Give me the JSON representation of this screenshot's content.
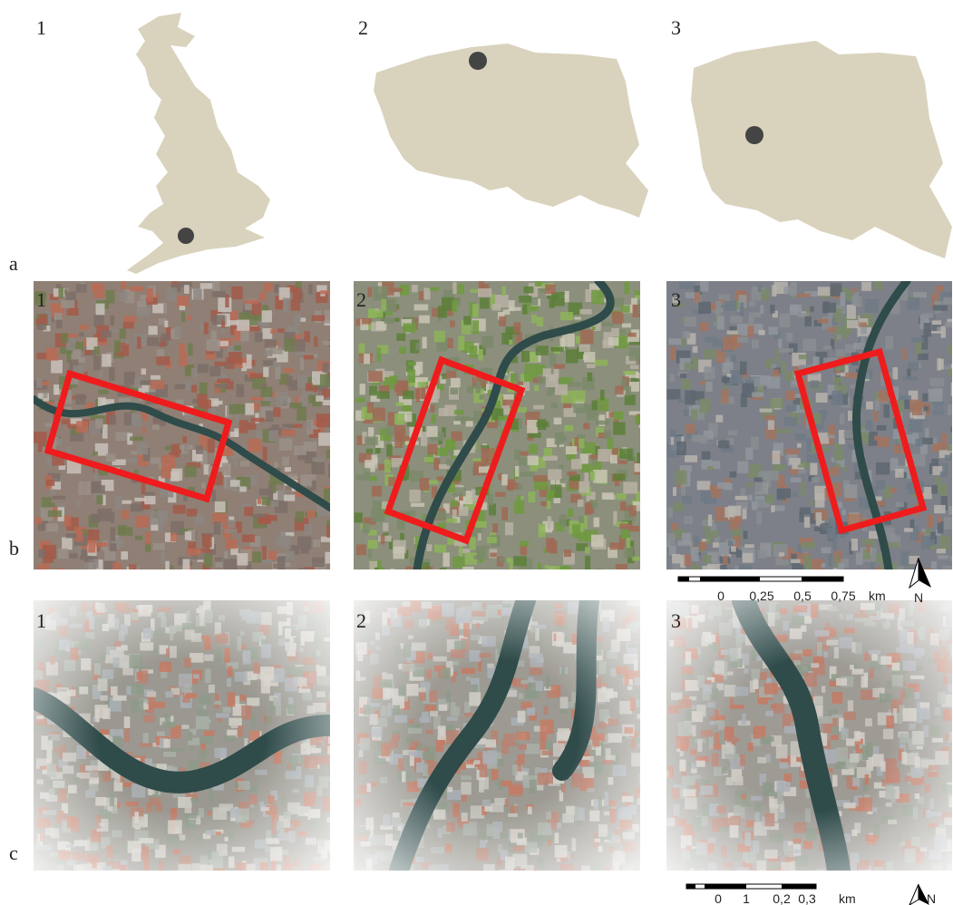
{
  "rows": [
    {
      "label": "a",
      "panels": [
        "1",
        "2",
        "3"
      ]
    },
    {
      "label": "b",
      "panels": [
        "1",
        "2",
        "3"
      ]
    },
    {
      "label": "c",
      "panels": [
        "1",
        "2",
        "3"
      ]
    }
  ],
  "scale_bars": [
    {
      "ticks": [
        "0",
        "0,25",
        "0,5",
        "0,75"
      ],
      "unit": "km",
      "north": "N"
    },
    {
      "ticks": [
        "0",
        "1",
        "0,2",
        "0,3"
      ],
      "unit": "km",
      "north": "N"
    }
  ]
}
